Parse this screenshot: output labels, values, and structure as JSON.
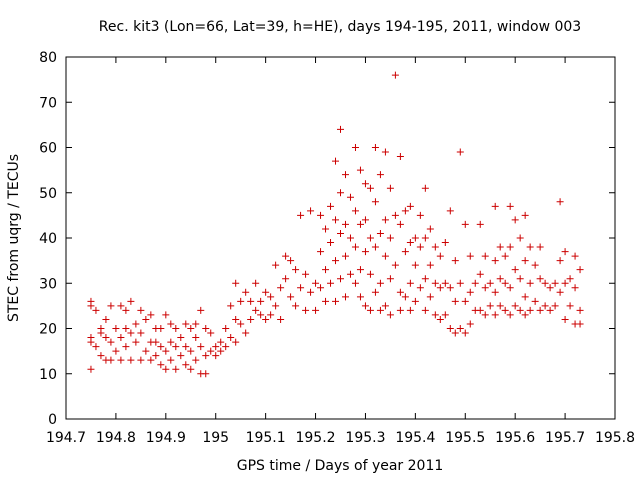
{
  "chart_data": {
    "type": "scatter",
    "title": "Rec. kit3 (Lon=66, Lat=39, h=HE), days 194-195, 2011, window 003",
    "xlabel": "GPS time / Days of year 2011",
    "ylabel": "STEC from uqrg / TECUs",
    "xlim": [
      194.7,
      195.8
    ],
    "ylim": [
      0,
      80
    ],
    "x_ticks": [
      194.7,
      194.8,
      194.9,
      195.0,
      195.1,
      195.2,
      195.3,
      195.4,
      195.5,
      195.6,
      195.7,
      195.8
    ],
    "x_tick_labels": [
      "194.7",
      "194.8",
      "194.9",
      "195",
      "195.1",
      "195.2",
      "195.3",
      "195.4",
      "195.5",
      "195.6",
      "195.7",
      "195.8"
    ],
    "y_ticks": [
      0,
      10,
      20,
      30,
      40,
      50,
      60,
      70,
      80
    ],
    "y_tick_labels": [
      "0",
      "10",
      "20",
      "30",
      "40",
      "50",
      "60",
      "70",
      "80"
    ],
    "marker": "+",
    "color": "#cc0000",
    "series": [
      {
        "name": "STEC",
        "points": [
          [
            194.75,
            26
          ],
          [
            194.75,
            25
          ],
          [
            194.75,
            18
          ],
          [
            194.75,
            17
          ],
          [
            194.75,
            11
          ],
          [
            194.76,
            24
          ],
          [
            194.76,
            16
          ],
          [
            194.77,
            20
          ],
          [
            194.77,
            14
          ],
          [
            194.77,
            19
          ],
          [
            194.78,
            22
          ],
          [
            194.78,
            13
          ],
          [
            194.78,
            18
          ],
          [
            194.79,
            25
          ],
          [
            194.79,
            17
          ],
          [
            194.79,
            13
          ],
          [
            194.8,
            20
          ],
          [
            194.8,
            15
          ],
          [
            194.81,
            25
          ],
          [
            194.81,
            18
          ],
          [
            194.81,
            13
          ],
          [
            194.82,
            24
          ],
          [
            194.82,
            20
          ],
          [
            194.82,
            16
          ],
          [
            194.83,
            26
          ],
          [
            194.83,
            13
          ],
          [
            194.83,
            19
          ],
          [
            194.84,
            21
          ],
          [
            194.84,
            17
          ],
          [
            194.85,
            24
          ],
          [
            194.85,
            13
          ],
          [
            194.85,
            19
          ],
          [
            194.86,
            15
          ],
          [
            194.86,
            22
          ],
          [
            194.87,
            17
          ],
          [
            194.87,
            23
          ],
          [
            194.87,
            13
          ],
          [
            194.88,
            20
          ],
          [
            194.88,
            14
          ],
          [
            194.88,
            17
          ],
          [
            194.89,
            16
          ],
          [
            194.89,
            12
          ],
          [
            194.89,
            20
          ],
          [
            194.9,
            23
          ],
          [
            194.9,
            15
          ],
          [
            194.9,
            11
          ],
          [
            194.91,
            21
          ],
          [
            194.91,
            17
          ],
          [
            194.91,
            13
          ],
          [
            194.92,
            20
          ],
          [
            194.92,
            16
          ],
          [
            194.92,
            11
          ],
          [
            194.93,
            18
          ],
          [
            194.93,
            14
          ],
          [
            194.94,
            21
          ],
          [
            194.94,
            16
          ],
          [
            194.94,
            12
          ],
          [
            194.95,
            20
          ],
          [
            194.95,
            15
          ],
          [
            194.95,
            11
          ],
          [
            194.96,
            21
          ],
          [
            194.96,
            18
          ],
          [
            194.96,
            13
          ],
          [
            194.97,
            24
          ],
          [
            194.97,
            16
          ],
          [
            194.97,
            10
          ],
          [
            194.98,
            20
          ],
          [
            194.98,
            14
          ],
          [
            194.98,
            10
          ],
          [
            194.99,
            19
          ],
          [
            194.99,
            15
          ],
          [
            195.0,
            16
          ],
          [
            195.0,
            14
          ],
          [
            195.01,
            17
          ],
          [
            195.01,
            15
          ],
          [
            195.02,
            20
          ],
          [
            195.02,
            16
          ],
          [
            195.03,
            25
          ],
          [
            195.03,
            18
          ],
          [
            195.04,
            30
          ],
          [
            195.04,
            22
          ],
          [
            195.04,
            17
          ],
          [
            195.05,
            26
          ],
          [
            195.05,
            21
          ],
          [
            195.06,
            28
          ],
          [
            195.06,
            19
          ],
          [
            195.07,
            26
          ],
          [
            195.07,
            22
          ],
          [
            195.08,
            30
          ],
          [
            195.08,
            24
          ],
          [
            195.09,
            26
          ],
          [
            195.09,
            23
          ],
          [
            195.1,
            28
          ],
          [
            195.1,
            22
          ],
          [
            195.11,
            27
          ],
          [
            195.11,
            23
          ],
          [
            195.12,
            34
          ],
          [
            195.12,
            25
          ],
          [
            195.13,
            29
          ],
          [
            195.13,
            22
          ],
          [
            195.14,
            36
          ],
          [
            195.14,
            31
          ],
          [
            195.15,
            35
          ],
          [
            195.15,
            27
          ],
          [
            195.16,
            33
          ],
          [
            195.16,
            25
          ],
          [
            195.17,
            45
          ],
          [
            195.17,
            29
          ],
          [
            195.18,
            32
          ],
          [
            195.18,
            24
          ],
          [
            195.19,
            46
          ],
          [
            195.19,
            28
          ],
          [
            195.2,
            30
          ],
          [
            195.2,
            24
          ],
          [
            195.21,
            45
          ],
          [
            195.21,
            37
          ],
          [
            195.21,
            29
          ],
          [
            195.22,
            42
          ],
          [
            195.22,
            33
          ],
          [
            195.22,
            26
          ],
          [
            195.23,
            47
          ],
          [
            195.23,
            39
          ],
          [
            195.23,
            30
          ],
          [
            195.24,
            57
          ],
          [
            195.24,
            44
          ],
          [
            195.24,
            35
          ],
          [
            195.24,
            26
          ],
          [
            195.25,
            64
          ],
          [
            195.25,
            50
          ],
          [
            195.25,
            41
          ],
          [
            195.25,
            31
          ],
          [
            195.26,
            54
          ],
          [
            195.26,
            43
          ],
          [
            195.26,
            36
          ],
          [
            195.26,
            27
          ],
          [
            195.27,
            49
          ],
          [
            195.27,
            40
          ],
          [
            195.27,
            32
          ],
          [
            195.28,
            60
          ],
          [
            195.28,
            46
          ],
          [
            195.28,
            38
          ],
          [
            195.28,
            30
          ],
          [
            195.29,
            55
          ],
          [
            195.29,
            43
          ],
          [
            195.29,
            33
          ],
          [
            195.29,
            27
          ],
          [
            195.3,
            52
          ],
          [
            195.3,
            44
          ],
          [
            195.3,
            37
          ],
          [
            195.3,
            25
          ],
          [
            195.31,
            51
          ],
          [
            195.31,
            40
          ],
          [
            195.31,
            32
          ],
          [
            195.31,
            24
          ],
          [
            195.32,
            60
          ],
          [
            195.32,
            48
          ],
          [
            195.32,
            38
          ],
          [
            195.32,
            28
          ],
          [
            195.33,
            54
          ],
          [
            195.33,
            41
          ],
          [
            195.33,
            30
          ],
          [
            195.33,
            24
          ],
          [
            195.34,
            59
          ],
          [
            195.34,
            44
          ],
          [
            195.34,
            36
          ],
          [
            195.34,
            25
          ],
          [
            195.35,
            51
          ],
          [
            195.35,
            40
          ],
          [
            195.35,
            31
          ],
          [
            195.35,
            23
          ],
          [
            195.36,
            76
          ],
          [
            195.36,
            45
          ],
          [
            195.36,
            34
          ],
          [
            195.37,
            58
          ],
          [
            195.37,
            43
          ],
          [
            195.37,
            28
          ],
          [
            195.37,
            24
          ],
          [
            195.38,
            46
          ],
          [
            195.38,
            37
          ],
          [
            195.38,
            27
          ],
          [
            195.39,
            47
          ],
          [
            195.39,
            39
          ],
          [
            195.39,
            30
          ],
          [
            195.39,
            24
          ],
          [
            195.4,
            40
          ],
          [
            195.4,
            34
          ],
          [
            195.4,
            26
          ],
          [
            195.41,
            45
          ],
          [
            195.41,
            38
          ],
          [
            195.41,
            29
          ],
          [
            195.42,
            51
          ],
          [
            195.42,
            40
          ],
          [
            195.42,
            31
          ],
          [
            195.42,
            24
          ],
          [
            195.43,
            42
          ],
          [
            195.43,
            34
          ],
          [
            195.43,
            27
          ],
          [
            195.44,
            38
          ],
          [
            195.44,
            30
          ],
          [
            195.44,
            23
          ],
          [
            195.45,
            36
          ],
          [
            195.45,
            29
          ],
          [
            195.45,
            22
          ],
          [
            195.46,
            39
          ],
          [
            195.46,
            30
          ],
          [
            195.46,
            23
          ],
          [
            195.47,
            46
          ],
          [
            195.47,
            29
          ],
          [
            195.47,
            20
          ],
          [
            195.48,
            35
          ],
          [
            195.48,
            26
          ],
          [
            195.48,
            19
          ],
          [
            195.49,
            59
          ],
          [
            195.49,
            30
          ],
          [
            195.49,
            20
          ],
          [
            195.5,
            43
          ],
          [
            195.5,
            26
          ],
          [
            195.5,
            19
          ],
          [
            195.51,
            36
          ],
          [
            195.51,
            28
          ],
          [
            195.51,
            21
          ],
          [
            195.52,
            30
          ],
          [
            195.52,
            24
          ],
          [
            195.53,
            43
          ],
          [
            195.53,
            32
          ],
          [
            195.53,
            24
          ],
          [
            195.54,
            36
          ],
          [
            195.54,
            29
          ],
          [
            195.54,
            23
          ],
          [
            195.55,
            30
          ],
          [
            195.55,
            25
          ],
          [
            195.56,
            47
          ],
          [
            195.56,
            35
          ],
          [
            195.56,
            28
          ],
          [
            195.56,
            23
          ],
          [
            195.57,
            38
          ],
          [
            195.57,
            31
          ],
          [
            195.57,
            25
          ],
          [
            195.58,
            36
          ],
          [
            195.58,
            30
          ],
          [
            195.58,
            24
          ],
          [
            195.59,
            47
          ],
          [
            195.59,
            38
          ],
          [
            195.59,
            29
          ],
          [
            195.59,
            23
          ],
          [
            195.6,
            44
          ],
          [
            195.6,
            33
          ],
          [
            195.6,
            25
          ],
          [
            195.61,
            40
          ],
          [
            195.61,
            31
          ],
          [
            195.61,
            24
          ],
          [
            195.62,
            45
          ],
          [
            195.62,
            35
          ],
          [
            195.62,
            27
          ],
          [
            195.62,
            23
          ],
          [
            195.63,
            38
          ],
          [
            195.63,
            30
          ],
          [
            195.63,
            24
          ],
          [
            195.64,
            34
          ],
          [
            195.64,
            26
          ],
          [
            195.65,
            38
          ],
          [
            195.65,
            31
          ],
          [
            195.65,
            24
          ],
          [
            195.66,
            30
          ],
          [
            195.66,
            25
          ],
          [
            195.67,
            29
          ],
          [
            195.67,
            24
          ],
          [
            195.68,
            30
          ],
          [
            195.68,
            25
          ],
          [
            195.69,
            48
          ],
          [
            195.69,
            35
          ],
          [
            195.69,
            28
          ],
          [
            195.7,
            37
          ],
          [
            195.7,
            30
          ],
          [
            195.7,
            22
          ],
          [
            195.71,
            31
          ],
          [
            195.71,
            25
          ],
          [
            195.72,
            36
          ],
          [
            195.72,
            29
          ],
          [
            195.72,
            21
          ],
          [
            195.73,
            33
          ],
          [
            195.73,
            24
          ],
          [
            195.73,
            21
          ]
        ]
      }
    ]
  }
}
